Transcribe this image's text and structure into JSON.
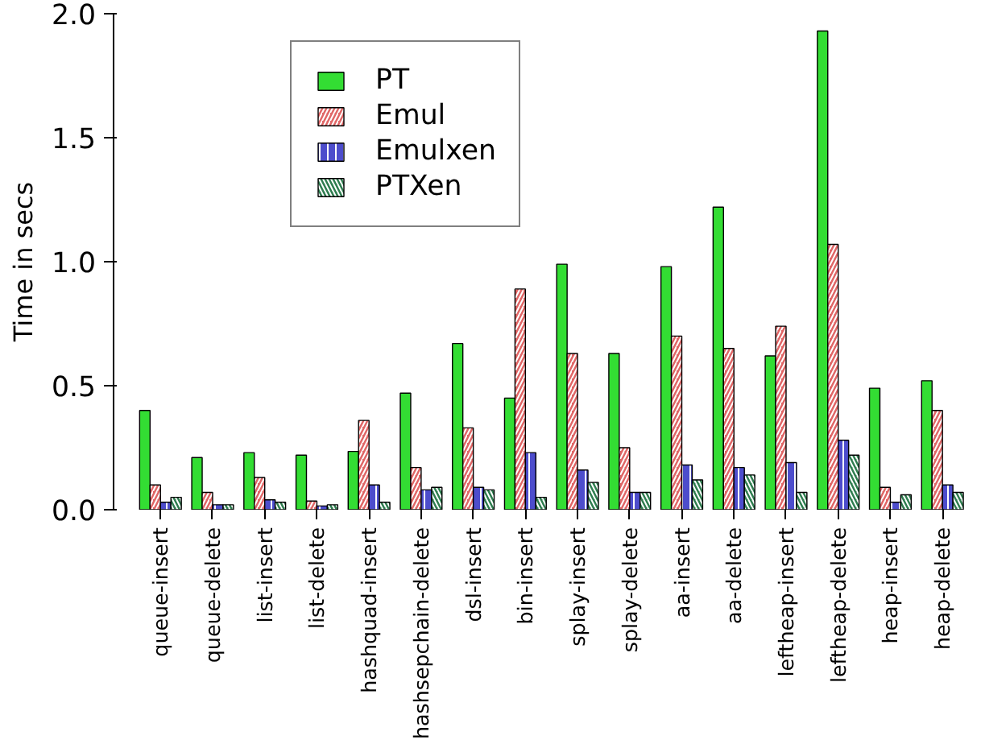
{
  "chart_data": {
    "type": "bar",
    "ylabel": "Time in secs",
    "categories": [
      "queue-insert",
      "queue-delete",
      "list-insert",
      "list-delete",
      "hashquad-insert",
      "hashsepchain-delete",
      "dsl-insert",
      "bin-insert",
      "splay-insert",
      "splay-delete",
      "aa-insert",
      "aa-delete",
      "leftheap-insert",
      "leftheap-delete",
      "heap-insert",
      "heap-delete"
    ],
    "series": [
      {
        "name": "PT",
        "color": "#33dd33",
        "values": [
          0.4,
          0.21,
          0.23,
          0.22,
          0.235,
          0.47,
          0.67,
          0.45,
          0.99,
          0.63,
          0.98,
          1.22,
          0.62,
          1.93,
          0.49,
          0.52
        ]
      },
      {
        "name": "Emul",
        "color": "#e06666",
        "values": [
          0.1,
          0.07,
          0.13,
          0.035,
          0.36,
          0.17,
          0.33,
          0.89,
          0.63,
          0.25,
          0.7,
          0.65,
          0.74,
          1.07,
          0.09,
          0.4
        ]
      },
      {
        "name": "Emulxen",
        "color": "#4d4dcc",
        "values": [
          0.03,
          0.02,
          0.04,
          0.015,
          0.1,
          0.08,
          0.09,
          0.23,
          0.16,
          0.07,
          0.18,
          0.17,
          0.19,
          0.28,
          0.03,
          0.1
        ]
      },
      {
        "name": "PTXen",
        "color": "#2e7d4f",
        "values": [
          0.05,
          0.02,
          0.03,
          0.02,
          0.03,
          0.09,
          0.08,
          0.05,
          0.11,
          0.07,
          0.12,
          0.14,
          0.07,
          0.22,
          0.06,
          0.07
        ]
      }
    ],
    "ylim": [
      0,
      2.0
    ],
    "yticks": [
      {
        "value": 0,
        "label": "0.0"
      },
      {
        "value": 0.5,
        "label": "0.5"
      },
      {
        "value": 1.0,
        "label": "1.0"
      },
      {
        "value": 1.5,
        "label": "1.5"
      },
      {
        "value": 2.0,
        "label": "2.0"
      }
    ],
    "legend": "top left"
  }
}
